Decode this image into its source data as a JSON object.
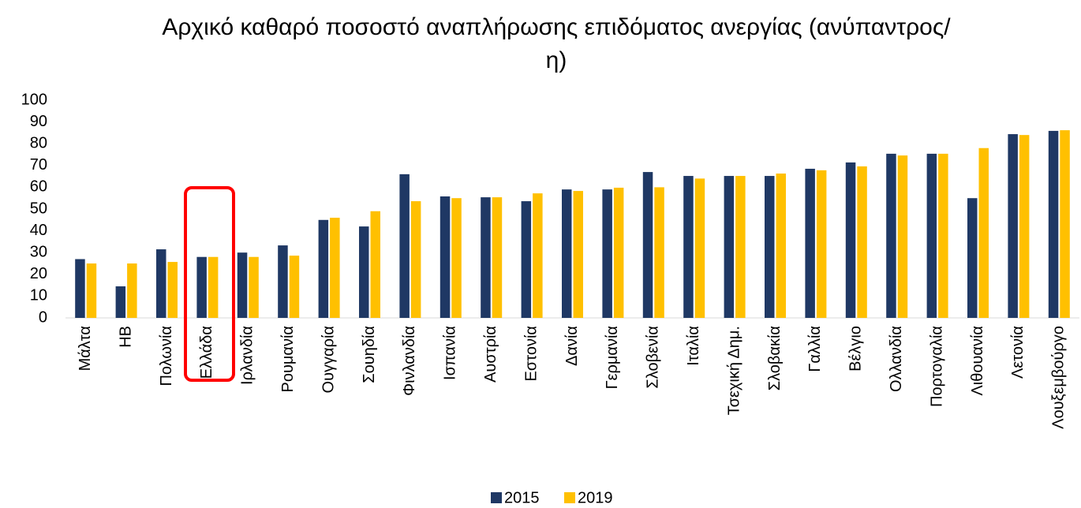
{
  "chart_data": {
    "type": "bar",
    "title": "Αρχικό καθαρό ποσοστό αναπλήρωσης επιδόματος ανεργίας (ανύπαντρος/η)",
    "categories": [
      "Μάλτα",
      "HB",
      "Πολωνία",
      "Ελλάδα",
      "Ιρλανδία",
      "Ρουμανία",
      "Ουγγαρία",
      "Σουηδία",
      "Φινλανδία",
      "Ισπανία",
      "Αυστρία",
      "Εστονία",
      "Δανία",
      "Γερμανία",
      "Σλοβενία",
      "Ιταλία",
      "Τσεχική Δημ.",
      "Σλοβακία",
      "Γαλλία",
      "Βέλγιο",
      "Ολλανδία",
      "Πορτογαλία",
      "Λιθουανία",
      "Λετονία",
      "Λουξεμβούργο"
    ],
    "series": [
      {
        "name": "2015",
        "color": "#1f3864",
        "values": [
          27,
          14.5,
          31.5,
          28,
          30,
          33.3,
          45,
          42,
          66,
          55.8,
          55.4,
          53.6,
          59,
          59,
          67,
          65.2,
          65.2,
          65.2,
          68.5,
          71.4,
          75.4,
          75.4,
          55,
          84.4,
          85.9
        ]
      },
      {
        "name": "2019",
        "color": "#ffc000",
        "values": [
          25,
          25,
          25.7,
          28,
          28,
          28.6,
          46,
          49,
          53.6,
          55,
          55.4,
          57.2,
          58.3,
          59.8,
          60,
          64,
          65.2,
          66.3,
          67.8,
          69.6,
          74.6,
          75.4,
          78,
          84,
          86.2
        ]
      }
    ],
    "ylim": [
      0,
      100
    ],
    "yticks": [
      0,
      10,
      20,
      30,
      40,
      50,
      60,
      70,
      80,
      90,
      100
    ],
    "grid": false
  }
}
